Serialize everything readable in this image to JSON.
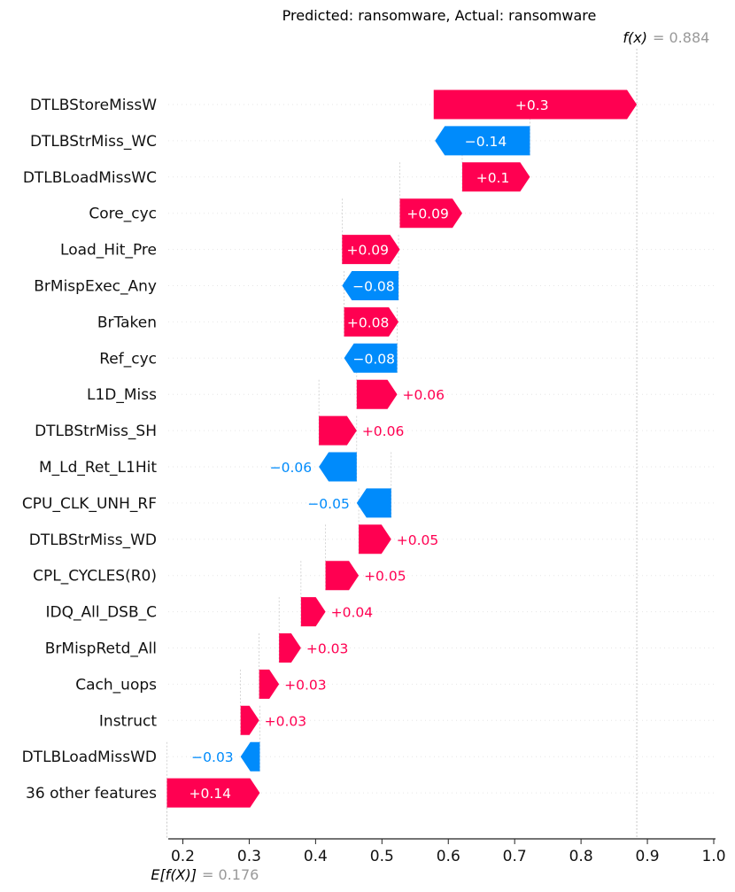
{
  "chart_data": {
    "type": "bar",
    "title": "Predicted: ransomware, Actual: ransomware",
    "base_value": 0.176,
    "base_label": {
      "text": "E[f(X)]",
      "value": "= 0.176"
    },
    "output_value": 0.884,
    "output_label": {
      "text": "f(x)",
      "value": "= 0.884"
    },
    "xlim": [
      0.178,
      1.0
    ],
    "xticks": [
      0.2,
      0.3,
      0.4,
      0.5,
      0.6,
      0.7,
      0.8,
      0.9,
      1.0
    ],
    "xtick_labels": [
      "0.2",
      "0.3",
      "0.4",
      "0.5",
      "0.6",
      "0.7",
      "0.8",
      "0.9",
      "1.0"
    ],
    "grid": false,
    "colors": {
      "positive": "#ff0051",
      "negative": "#008bfb",
      "value_text": "#999999"
    },
    "features": [
      {
        "name": "DTLBStoreMissW",
        "label": "+0.3",
        "start": 0.578,
        "end": 0.884
      },
      {
        "name": "DTLBStrMiss_WC",
        "label": "−0.14",
        "start": 0.723,
        "end": 0.58
      },
      {
        "name": "DTLBLoadMissWC",
        "label": "+0.1",
        "start": 0.621,
        "end": 0.723
      },
      {
        "name": "Core_cyc",
        "label": "+0.09",
        "start": 0.527,
        "end": 0.621
      },
      {
        "name": "Load_Hit_Pre",
        "label": "+0.09",
        "start": 0.44,
        "end": 0.527
      },
      {
        "name": "BrMispExec_Any",
        "label": "−0.08",
        "start": 0.525,
        "end": 0.44
      },
      {
        "name": "BrTaken",
        "label": "+0.08",
        "start": 0.443,
        "end": 0.525
      },
      {
        "name": "Ref_cyc",
        "label": "−0.08",
        "start": 0.523,
        "end": 0.443
      },
      {
        "name": "L1D_Miss",
        "label": "+0.06",
        "start": 0.462,
        "end": 0.523
      },
      {
        "name": "DTLBStrMiss_SH",
        "label": "+0.06",
        "start": 0.405,
        "end": 0.462
      },
      {
        "name": "M_Ld_Ret_L1Hit",
        "label": "−0.06",
        "start": 0.462,
        "end": 0.405
      },
      {
        "name": "CPU_CLK_UNH_RF",
        "label": "−0.05",
        "start": 0.514,
        "end": 0.462
      },
      {
        "name": "DTLBStrMiss_WD",
        "label": "+0.05",
        "start": 0.465,
        "end": 0.514
      },
      {
        "name": "CPL_CYCLES(R0)",
        "label": "+0.05",
        "start": 0.415,
        "end": 0.465
      },
      {
        "name": "IDQ_All_DSB_C",
        "label": "+0.04",
        "start": 0.378,
        "end": 0.415
      },
      {
        "name": "BrMispRetd_All",
        "label": "+0.03",
        "start": 0.345,
        "end": 0.378
      },
      {
        "name": "Cach_uops",
        "label": "+0.03",
        "start": 0.315,
        "end": 0.345
      },
      {
        "name": "Instruct",
        "label": "+0.03",
        "start": 0.287,
        "end": 0.315
      },
      {
        "name": "DTLBLoadMissWD",
        "label": "−0.03",
        "start": 0.316,
        "end": 0.287
      },
      {
        "name": "36 other features",
        "label": "+0.14",
        "start": 0.176,
        "end": 0.316
      }
    ]
  }
}
